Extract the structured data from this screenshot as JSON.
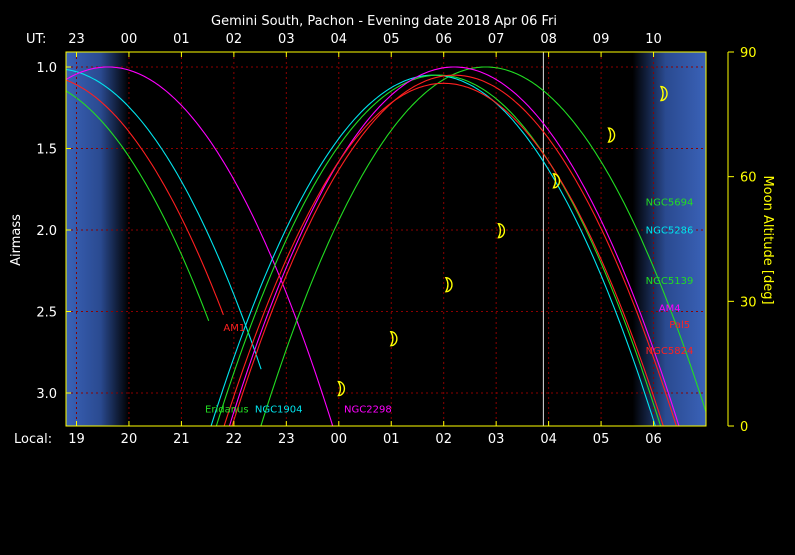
{
  "chart_data": {
    "type": "line",
    "title": "Gemini South, Pachon - Evening date 2018 Apr 06  Fri",
    "ut_label": "UT:",
    "local_label": "Local:",
    "ylabel": "Airmass",
    "y2label": "Moon Altitude [deg]",
    "ylim": [
      1.0,
      3.2
    ],
    "y2lim": [
      0,
      90
    ],
    "x_range_ut_hours": [
      22.8,
      35.0
    ],
    "ut_ticks": [
      {
        "label": "23",
        "ut": 23
      },
      {
        "label": "00",
        "ut": 24
      },
      {
        "label": "01",
        "ut": 25
      },
      {
        "label": "02",
        "ut": 26
      },
      {
        "label": "03",
        "ut": 27
      },
      {
        "label": "04",
        "ut": 28
      },
      {
        "label": "05",
        "ut": 29
      },
      {
        "label": "06",
        "ut": 30
      },
      {
        "label": "07",
        "ut": 31
      },
      {
        "label": "08",
        "ut": 32
      },
      {
        "label": "09",
        "ut": 33
      },
      {
        "label": "10",
        "ut": 34
      }
    ],
    "local_ticks": [
      {
        "label": "19",
        "ut": 23
      },
      {
        "label": "20",
        "ut": 24
      },
      {
        "label": "21",
        "ut": 25
      },
      {
        "label": "22",
        "ut": 26
      },
      {
        "label": "23",
        "ut": 27
      },
      {
        "label": "00",
        "ut": 28
      },
      {
        "label": "01",
        "ut": 29
      },
      {
        "label": "02",
        "ut": 30
      },
      {
        "label": "03",
        "ut": 31
      },
      {
        "label": "04",
        "ut": 32
      },
      {
        "label": "05",
        "ut": 33
      },
      {
        "label": "06",
        "ut": 34
      }
    ],
    "y_ticks": [
      {
        "label": "1.0",
        "v": 1.0
      },
      {
        "label": "1.5",
        "v": 1.5
      },
      {
        "label": "2.0",
        "v": 2.0
      },
      {
        "label": "2.5",
        "v": 2.5
      },
      {
        "label": "3.0",
        "v": 3.0
      }
    ],
    "y2_ticks": [
      {
        "label": "0",
        "v": 0
      },
      {
        "label": "30",
        "v": 30
      },
      {
        "label": "60",
        "v": 60
      },
      {
        "label": "90",
        "v": 90
      }
    ],
    "twilight": {
      "evening_end_ut": 24.0,
      "morning_start_ut": 33.6
    },
    "current_time_ut": 31.9,
    "grid": true,
    "colors": {
      "axes": "#ffff00",
      "text": "#ffffff",
      "grid": "#8b0000",
      "twilight": "#3a62b8",
      "moon": "#ffff00"
    },
    "series": [
      {
        "name": "AM1",
        "color": "#ff2020",
        "transit_ut": 22.3,
        "min_airmass": 1.05,
        "start_ut": 22.8,
        "end_ut": 25.8,
        "label_ut": 25.8,
        "label_airmass": 2.62
      },
      {
        "name": "Eridanus",
        "color": "#22dd22",
        "transit_ut": 22.0,
        "min_airmass": 1.07,
        "start_ut": 22.8,
        "end_ut": 25.55,
        "label_ut": 25.45,
        "label_airmass": 3.12
      },
      {
        "name": "NGC1904",
        "color": "#00e5ee",
        "transit_ut": 22.6,
        "min_airmass": 1.01,
        "start_ut": 22.8,
        "end_ut": 26.55,
        "label_ut": 26.4,
        "label_airmass": 3.12
      },
      {
        "name": "NGC2298",
        "color": "#ff00ff",
        "transit_ut": 23.6,
        "min_airmass": 1.0,
        "start_ut": 22.8,
        "end_ut": 28.3,
        "label_ut": 28.1,
        "label_airmass": 3.12
      },
      {
        "name": "NGC5694",
        "color": "#22dd22",
        "transit_ut": 30.8,
        "min_airmass": 1.0,
        "start_ut": 23.6,
        "end_ut": 35.0,
        "label_ut": 33.85,
        "label_airmass": 1.85
      },
      {
        "name": "NGC5286",
        "color": "#00e5ee",
        "transit_ut": 29.8,
        "min_airmass": 1.05,
        "start_ut": 23.8,
        "end_ut": 35.0,
        "label_ut": 33.85,
        "label_airmass": 2.02
      },
      {
        "name": "NGC5139",
        "color": "#22dd22",
        "transit_ut": 29.9,
        "min_airmass": 1.05,
        "start_ut": 24.8,
        "end_ut": 35.0,
        "label_ut": 33.85,
        "label_airmass": 2.33
      },
      {
        "name": "AM4",
        "color": "#ff00ff",
        "transit_ut": 30.2,
        "min_airmass": 1.0,
        "start_ut": 24.5,
        "end_ut": 35.0,
        "label_ut": 34.1,
        "label_airmass": 2.5
      },
      {
        "name": "Pal5",
        "color": "#ff2020",
        "transit_ut": 30.2,
        "min_airmass": 1.05,
        "start_ut": 22.8,
        "end_ut": 35.0,
        "label_ut": 34.3,
        "label_airmass": 2.6
      },
      {
        "name": "NGC5824",
        "color": "#ff2020",
        "transit_ut": 30.0,
        "min_airmass": 1.1,
        "start_ut": 25.5,
        "end_ut": 35.0,
        "label_ut": 33.85,
        "label_airmass": 2.76
      }
    ],
    "moon": [
      {
        "ut": 28.05,
        "alt": 9
      },
      {
        "ut": 29.05,
        "alt": 21
      },
      {
        "ut": 30.1,
        "alt": 34
      },
      {
        "ut": 31.1,
        "alt": 47
      },
      {
        "ut": 32.15,
        "alt": 59
      },
      {
        "ut": 33.2,
        "alt": 70
      },
      {
        "ut": 34.2,
        "alt": 80
      }
    ]
  }
}
